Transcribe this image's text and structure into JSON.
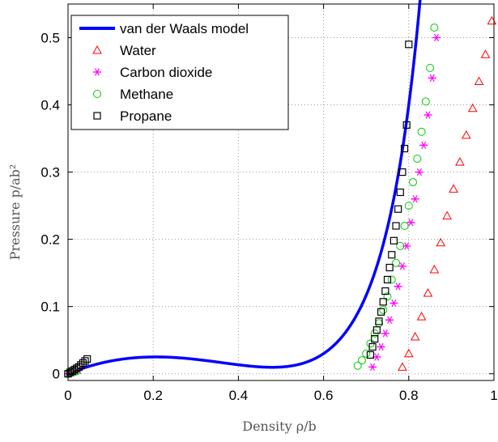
{
  "chart_data": {
    "type": "scatter",
    "xlabel": "Density ρ/b",
    "ylabel": "Pressure p/ab²",
    "xlim": [
      0,
      1
    ],
    "ylim": [
      -0.01,
      0.55
    ],
    "grid": true,
    "legend_position": "top-left",
    "x_ticks": [
      "0",
      "0.2",
      "0.4",
      "0.6",
      "0.8",
      "1"
    ],
    "y_ticks": [
      "0",
      "0.1",
      "0.2",
      "0.3",
      "0.4",
      "0.5"
    ],
    "series": [
      {
        "name": "van der Waals model",
        "kind": "line",
        "color": "#0000ff",
        "model": "vdw_reduced_T0.26",
        "x": [
          0.0,
          0.02,
          0.05,
          0.08,
          0.1,
          0.15,
          0.2,
          0.25,
          0.3,
          0.35,
          0.4,
          0.45,
          0.5,
          0.55,
          0.6,
          0.65,
          0.7,
          0.75,
          0.78,
          0.8,
          0.82,
          0.83
        ],
        "y": [
          0.0,
          0.0049,
          0.0111,
          0.0161,
          0.0189,
          0.0229,
          0.024,
          0.0242,
          0.0199,
          0.0155,
          0.0099,
          0.0043,
          0.0,
          0.0,
          0.0081,
          0.0311,
          0.0796,
          0.1742,
          0.2687,
          0.3593,
          0.4847,
          0.5681
        ]
      },
      {
        "name": "Water",
        "kind": "marker",
        "marker": "triangle",
        "color": "#ff0000",
        "x": [
          0.785,
          0.8,
          0.815,
          0.83,
          0.845,
          0.86,
          0.875,
          0.89,
          0.905,
          0.92,
          0.935,
          0.95,
          0.965,
          0.98,
          0.995
        ],
        "y": [
          0.01,
          0.03,
          0.055,
          0.085,
          0.12,
          0.155,
          0.195,
          0.235,
          0.275,
          0.315,
          0.355,
          0.395,
          0.435,
          0.475,
          0.525
        ]
      },
      {
        "name": "Carbon dioxide",
        "kind": "marker",
        "marker": "asterisk",
        "color": "#ff00ff",
        "x": [
          0.0,
          0.005,
          0.01,
          0.015,
          0.02,
          0.025,
          0.715,
          0.725,
          0.735,
          0.745,
          0.755,
          0.765,
          0.775,
          0.785,
          0.795,
          0.805,
          0.815,
          0.825,
          0.835,
          0.845,
          0.855,
          0.865
        ],
        "y": [
          0.0,
          0.001,
          0.002,
          0.003,
          0.004,
          0.005,
          0.01,
          0.025,
          0.04,
          0.06,
          0.08,
          0.105,
          0.13,
          0.16,
          0.19,
          0.225,
          0.26,
          0.3,
          0.34,
          0.385,
          0.44,
          0.5
        ]
      },
      {
        "name": "Methane",
        "kind": "marker",
        "marker": "circle",
        "color": "#00cc00",
        "x": [
          0.0,
          0.005,
          0.01,
          0.015,
          0.02,
          0.68,
          0.69,
          0.7,
          0.71,
          0.72,
          0.73,
          0.74,
          0.75,
          0.76,
          0.77,
          0.78,
          0.79,
          0.8,
          0.81,
          0.82,
          0.83,
          0.84,
          0.85,
          0.86
        ],
        "y": [
          0.0,
          0.001,
          0.002,
          0.003,
          0.004,
          0.012,
          0.02,
          0.03,
          0.045,
          0.06,
          0.075,
          0.095,
          0.115,
          0.14,
          0.165,
          0.19,
          0.22,
          0.25,
          0.285,
          0.32,
          0.36,
          0.405,
          0.455,
          0.515
        ]
      },
      {
        "name": "Propane",
        "kind": "marker",
        "marker": "square",
        "color": "#000000",
        "x": [
          0.0,
          0.005,
          0.01,
          0.015,
          0.02,
          0.025,
          0.03,
          0.035,
          0.04,
          0.045,
          0.71,
          0.715,
          0.72,
          0.725,
          0.73,
          0.735,
          0.74,
          0.745,
          0.75,
          0.755,
          0.76,
          0.765,
          0.77,
          0.775,
          0.78,
          0.785,
          0.79,
          0.795,
          0.8
        ],
        "y": [
          0.0,
          0.002,
          0.004,
          0.006,
          0.008,
          0.01,
          0.013,
          0.016,
          0.019,
          0.022,
          0.028,
          0.04,
          0.052,
          0.065,
          0.078,
          0.092,
          0.107,
          0.123,
          0.14,
          0.158,
          0.177,
          0.198,
          0.22,
          0.245,
          0.27,
          0.3,
          0.335,
          0.37,
          0.49
        ]
      }
    ]
  }
}
